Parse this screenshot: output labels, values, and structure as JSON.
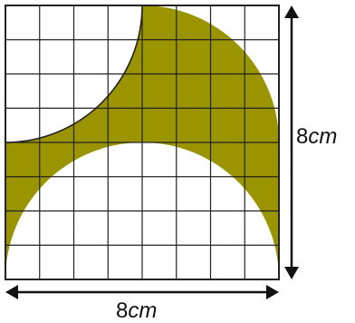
{
  "figure": {
    "shaded_color": "#9a9400",
    "grid_color": "#222222",
    "grid_cells": 8,
    "width_label": {
      "value": "8",
      "unit": "cm"
    },
    "height_label": {
      "value": "8",
      "unit": "cm"
    }
  }
}
